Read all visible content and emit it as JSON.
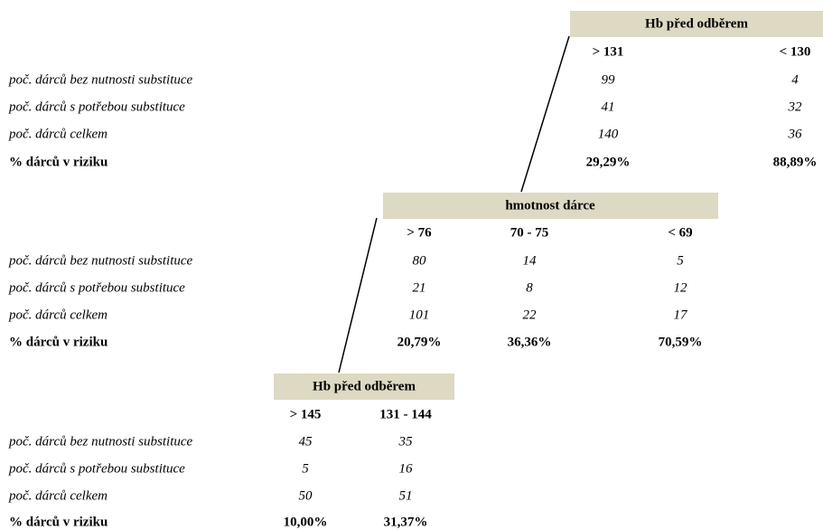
{
  "blocks": [
    {
      "title": "Hb před odběrem",
      "columns": [
        "> 131",
        "< 130"
      ],
      "rows": [
        {
          "label": "poč. dárců bez nutnosti substituce",
          "values": [
            "99",
            "4"
          ]
        },
        {
          "label": "poč. dárců s potřebou substituce",
          "values": [
            "41",
            "32"
          ]
        },
        {
          "label": "poč. dárců celkem",
          "values": [
            "140",
            "36"
          ]
        },
        {
          "label": "% dárců v riziku",
          "values": [
            "29,29%",
            "88,89%"
          ]
        }
      ]
    },
    {
      "title": "hmotnost dárce",
      "columns": [
        "> 76",
        "70 - 75",
        "< 69"
      ],
      "rows": [
        {
          "label": "poč. dárců bez nutnosti substituce",
          "values": [
            "80",
            "14",
            "5"
          ]
        },
        {
          "label": "poč. dárců s potřebou substituce",
          "values": [
            "21",
            "8",
            "12"
          ]
        },
        {
          "label": "poč. dárců celkem",
          "values": [
            "101",
            "22",
            "17"
          ]
        },
        {
          "label": "% dárců v riziku",
          "values": [
            "20,79%",
            "36,36%",
            "70,59%"
          ]
        }
      ]
    },
    {
      "title": "Hb před odběrem",
      "columns": [
        "> 145",
        "131 - 144"
      ],
      "rows": [
        {
          "label": "poč. dárců bez nutnosti substituce",
          "values": [
            "45",
            "35"
          ]
        },
        {
          "label": "poč. dárců s potřebou substituce",
          "values": [
            "5",
            "16"
          ]
        },
        {
          "label": "poč. dárců celkem",
          "values": [
            "50",
            "51"
          ]
        },
        {
          "label": "% dárců v riziku",
          "values": [
            "10,00%",
            "31,37%"
          ]
        }
      ]
    }
  ]
}
